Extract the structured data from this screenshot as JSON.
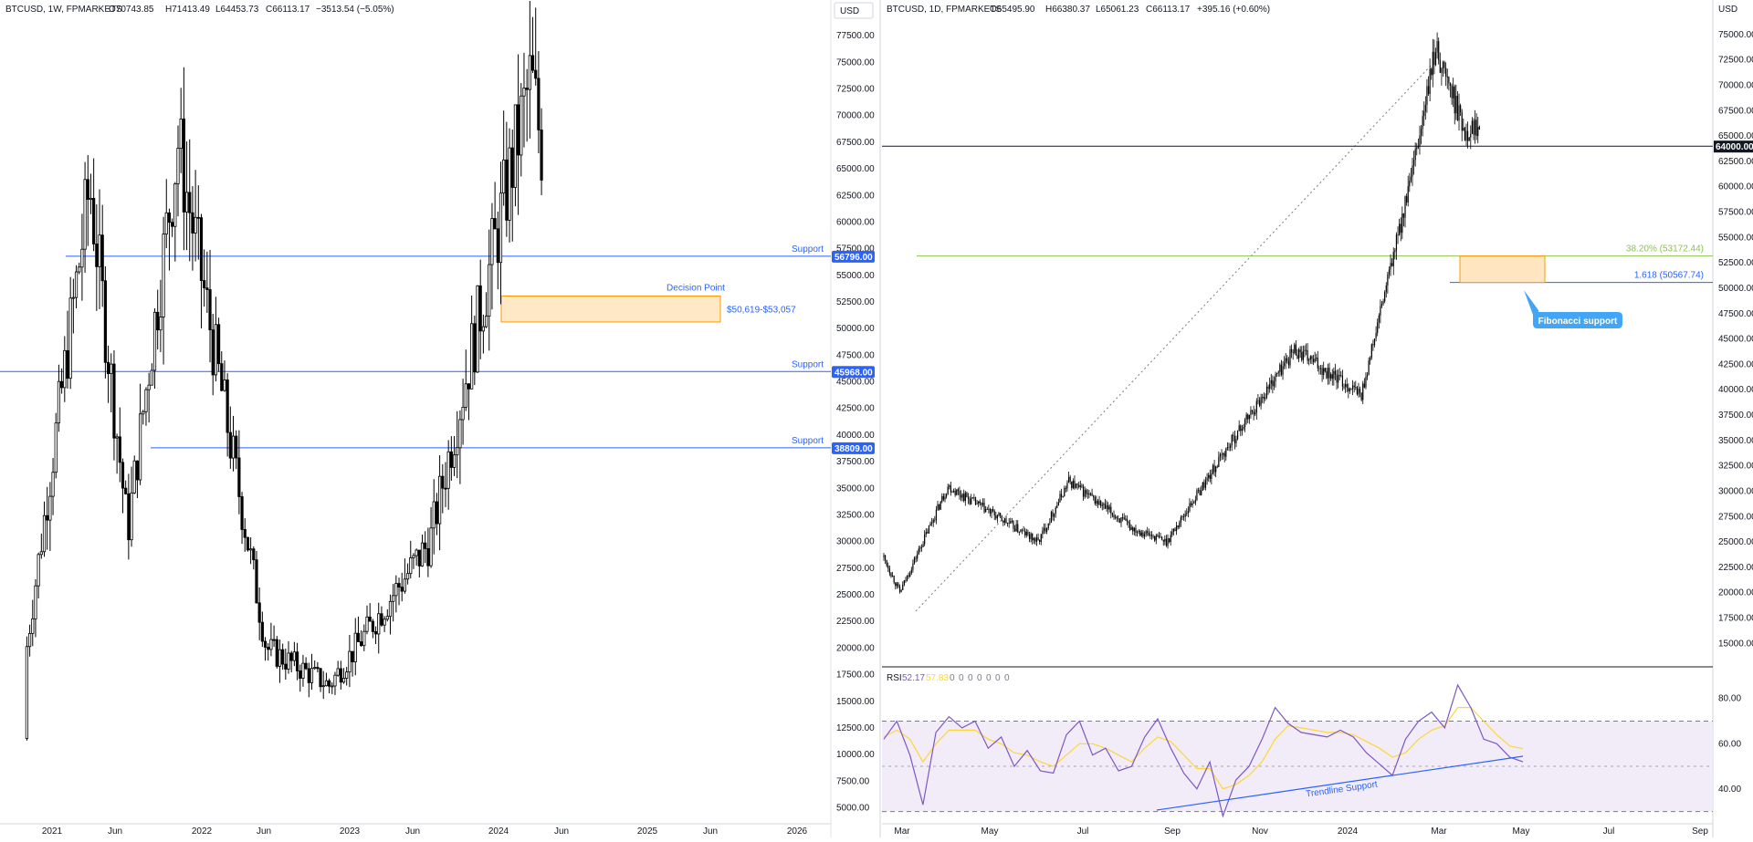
{
  "colors": {
    "support_line": "#2962ff",
    "zone_fill": "#ffe0b2",
    "zone_border": "#ff9800",
    "fib_line": "#8bc34a",
    "rsi_line": "#7e57c2",
    "rsi_ma": "#fdd835",
    "rsi_band": "#ede7f6",
    "callout": "#42a5f5",
    "candle": "#000000"
  },
  "chart_data": [
    {
      "type": "candlestick",
      "title": "BTCUSD, 1W, FPMARKETS",
      "ohlc_readout": [
        "O70743.85",
        "H71413.49",
        "L64453.73",
        "C66113.17",
        "−3513.54 (−5.05%)"
      ],
      "currency": "USD",
      "ylim": [
        3500,
        80000
      ],
      "y_ticks": [
        "77500.00",
        "75000.00",
        "72500.00",
        "70000.00",
        "67500.00",
        "65000.00",
        "62500.00",
        "60000.00",
        "57500.00",
        "55000.00",
        "52500.00",
        "50000.00",
        "47500.00",
        "45000.00",
        "42500.00",
        "40000.00",
        "37500.00",
        "35000.00",
        "32500.00",
        "30000.00",
        "27500.00",
        "25000.00",
        "22500.00",
        "20000.00",
        "17500.00",
        "15000.00",
        "12500.00",
        "10000.00",
        "7500.00",
        "5000.00"
      ],
      "x_ticks": [
        "2021",
        "Jun",
        "2022",
        "Jun",
        "2023",
        "Jun",
        "2024",
        "Jun",
        "2025",
        "Jun",
        "2026"
      ],
      "support_lines": [
        {
          "label": "Support",
          "value": 56796,
          "value_label": "56796.00"
        },
        {
          "label": "Support",
          "value": 45968,
          "value_label": "45968.00"
        },
        {
          "label": "Support",
          "value": 38809,
          "value_label": "38809.00"
        }
      ],
      "zone": {
        "title": "Decision Point",
        "label": "$50,619-$53,057",
        "low": 50619,
        "high": 53057
      },
      "key_points": [
        {
          "date": "2020-10",
          "close": 11500
        },
        {
          "date": "2021-04",
          "close": 63500
        },
        {
          "date": "2021-07",
          "close": 31000
        },
        {
          "date": "2021-11",
          "close": 67500
        },
        {
          "date": "2022-06",
          "close": 20000
        },
        {
          "date": "2022-11",
          "close": 16500
        },
        {
          "date": "2023-07",
          "close": 30000
        },
        {
          "date": "2024-03",
          "close": 73500
        },
        {
          "date": "2024-04",
          "close": 66113
        }
      ]
    },
    {
      "type": "candlestick",
      "title": "BTCUSD, 1D, FPMARKETS",
      "ohlc_readout": [
        "O65495.90",
        "H66380.37",
        "L65061.23",
        "C66113.17",
        "+395.16 (+0.60%)"
      ],
      "currency": "USD",
      "ylim": [
        13500,
        77500
      ],
      "y_ticks": [
        "75000.00",
        "72500.00",
        "70000.00",
        "67500.00",
        "65000.00",
        "62500.00",
        "60000.00",
        "57500.00",
        "55000.00",
        "52500.00",
        "50000.00",
        "47500.00",
        "45000.00",
        "42500.00",
        "40000.00",
        "37500.00",
        "35000.00",
        "32500.00",
        "30000.00",
        "27500.00",
        "25000.00",
        "22500.00",
        "20000.00",
        "17500.00",
        "15000.00"
      ],
      "x_ticks": [
        "Mar",
        "May",
        "Jul",
        "Sep",
        "Nov",
        "2024",
        "Mar",
        "May",
        "Jul",
        "Sep"
      ],
      "horizontal_level": {
        "value": 64000,
        "value_label": "64000.00"
      },
      "fib_levels": [
        {
          "label": "38.20% (53172.44)",
          "value": 53172.44
        },
        {
          "label": "1.618 (50567.74)",
          "value": 50567.74
        }
      ],
      "zone": {
        "low": 50567.74,
        "high": 53172.44
      },
      "callout": "Fibonacci support",
      "key_points": [
        {
          "date": "2023-03-01",
          "close": 23500
        },
        {
          "date": "2023-03-12",
          "close": 20000
        },
        {
          "date": "2023-04-14",
          "close": 30500
        },
        {
          "date": "2023-06-15",
          "close": 25000
        },
        {
          "date": "2023-07-06",
          "close": 31000
        },
        {
          "date": "2023-08-17",
          "close": 26500
        },
        {
          "date": "2023-09-11",
          "close": 25000
        },
        {
          "date": "2023-10-24",
          "close": 34500
        },
        {
          "date": "2023-12-08",
          "close": 44000
        },
        {
          "date": "2024-01-23",
          "close": 39500
        },
        {
          "date": "2024-02-28",
          "close": 62000
        },
        {
          "date": "2024-03-14",
          "close": 73700
        },
        {
          "date": "2024-04-03",
          "close": 65500
        },
        {
          "date": "2024-04-13",
          "close": 66113
        }
      ]
    },
    {
      "type": "line",
      "title": "RSI",
      "readout": [
        "52.17",
        "57.83",
        "0",
        "0",
        "0",
        "0",
        "0",
        "0",
        "0"
      ],
      "ylim": [
        25,
        92
      ],
      "y_ticks": [
        "80.00",
        "60.00",
        "40.00"
      ],
      "bands": [
        70,
        50,
        30
      ],
      "trendline_label": "Trendline Support",
      "series": [
        {
          "values": [
            62,
            70,
            55,
            33,
            65,
            72,
            67,
            70,
            58,
            63,
            50,
            57,
            48,
            47,
            64,
            70,
            55,
            58,
            48,
            50,
            63,
            71,
            58,
            47,
            40,
            52,
            28,
            44,
            50,
            62,
            76,
            69,
            65,
            64,
            63,
            66,
            63,
            56,
            51,
            46,
            62,
            70,
            74,
            67,
            86,
            76,
            62,
            60,
            54,
            52
          ]
        },
        {
          "values": [
            63,
            66,
            62,
            52,
            60,
            66,
            66,
            66,
            62,
            60,
            56,
            55,
            52,
            50,
            55,
            60,
            60,
            58,
            55,
            52,
            58,
            63,
            61,
            55,
            49,
            49,
            40,
            42,
            46,
            52,
            62,
            68,
            67,
            66,
            65,
            65,
            64,
            61,
            58,
            54,
            56,
            62,
            66,
            68,
            76,
            76,
            70,
            64,
            59,
            57.83
          ]
        }
      ]
    }
  ]
}
